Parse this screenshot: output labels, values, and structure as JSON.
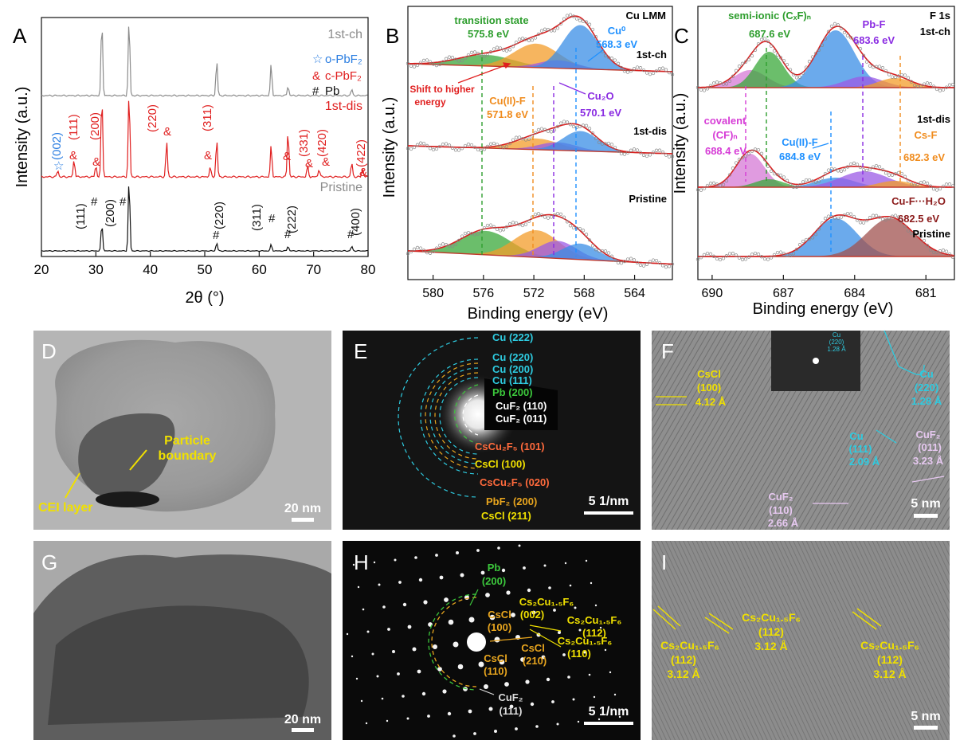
{
  "panelA": {
    "letter": "A",
    "ylabel": "Intensity (a.u.)",
    "xlabel": "2θ (°)",
    "xticks": [
      "20",
      "30",
      "40",
      "50",
      "60",
      "70",
      "80"
    ],
    "legend": [
      {
        "sym": "☆",
        "text": "o-PbF₂",
        "color": "#2a7de1"
      },
      {
        "sym": "&",
        "text": "c-PbF₂",
        "color": "#e01f1f"
      },
      {
        "sym": "#",
        "text": "Pb",
        "color": "#111111"
      }
    ],
    "curve_labels": [
      "1st-ch",
      "1st-dis",
      "Pristine"
    ],
    "dis_hkl": [
      "(002)",
      "(111)",
      "(200)",
      "(220)",
      "(311)",
      "(331)",
      "(420)",
      "(422)"
    ],
    "pristine_hkl": [
      "(111)",
      "(200)",
      "(220)",
      "(311)",
      "(222)",
      "(400)"
    ],
    "colors": {
      "ch": "#8c8c8c",
      "dis": "#e01f1f",
      "pristine": "#111111"
    }
  },
  "panelB": {
    "letter": "B",
    "title": "Cu LMM",
    "ylabel": "Intensity (a.u.)",
    "xlabel": "Binding energy (eV)",
    "xticks": [
      "580",
      "576",
      "572",
      "568",
      "564"
    ],
    "curve_labels": [
      "1st-ch",
      "1st-dis",
      "Pristine"
    ],
    "annotations": {
      "transition": "transition state",
      "transition_ev": "575.8 eV",
      "cu0": "Cu⁰",
      "cu0_ev": "568.3 eV",
      "shift1": "Shift to higher",
      "shift2": "energy",
      "cu2f": "Cu(II)-F",
      "cu2f_ev": "571.8 eV",
      "cu2o": "Cu₂O",
      "cu2o_ev": "570.1 eV"
    }
  },
  "panelC": {
    "letter": "C",
    "title": "F 1s",
    "ylabel": "Intensity (a.u.)",
    "xlabel": "Binding energy (eV)",
    "xticks": [
      "690",
      "687",
      "684",
      "681"
    ],
    "curve_labels": [
      "1st-ch",
      "1st-dis",
      "Pristine"
    ],
    "annotations": {
      "semi": "semi-ionic (CₓF)ₙ",
      "semi_ev": "687.6 eV",
      "pbf": "Pb-F",
      "pbf_ev": "683.6 eV",
      "cov": "covalent",
      "cov2": "(CF)ₙ",
      "cov_ev": "688.4 eV",
      "cu2f": "Cu(II)-F",
      "cu2f_ev": "684.8 eV",
      "csf": "Cs-F",
      "csf_ev": "682.3 eV",
      "water": "Cu-F···H₂O",
      "water_ev": "682.5 eV"
    }
  },
  "panelD": {
    "letter": "D",
    "particle1": "Particle",
    "particle2": "boundary",
    "cei": "CEI layer",
    "scale": "20 nm"
  },
  "panelE": {
    "letter": "E",
    "scale": "5 1/nm",
    "rings": [
      "Cu (222)",
      "Cu (220)",
      "Cu (200)",
      "Cu (111)",
      "Pb (200)",
      "CuF₂ (110)",
      "CuF₂ (011)",
      "CsCu₂F₅ (101)",
      "CsCl (100)",
      "CsCu₂F₅ (020)",
      "PbF₂ (200)",
      "CsCl (211)"
    ]
  },
  "panelF": {
    "letter": "F",
    "scale": "5 nm",
    "labels": [
      "CsCl",
      "(100)",
      "4.12 Å",
      "Cu",
      "(220)",
      "1.28 Å",
      "Cu",
      "(111)",
      "2.09 Å",
      "CuF₂",
      "(011)",
      "3.23 Å",
      "CuF₂",
      "(110)",
      "2.66 Å"
    ],
    "inset": [
      "Cu",
      "(220)",
      "1.28 Å"
    ]
  },
  "panelG": {
    "letter": "G",
    "scale": "20 nm"
  },
  "panelH": {
    "letter": "H",
    "scale": "5 1/nm",
    "labels": [
      "Pb",
      "(200)",
      "Cs₂Cu₁.₅F₆",
      "(002)",
      "CsCl",
      "(100)",
      "Cs₂Cu₁.₅F₆",
      "(112)",
      "Cs₂Cu₁.₅F₆",
      "(110)",
      "CsCl",
      "(210)",
      "CsCl",
      "(110)",
      "CuF₂",
      "(111)"
    ]
  },
  "panelI": {
    "letter": "I",
    "scale": "5 nm",
    "labels": [
      "Cs₂Cu₁.₅F₆",
      "(112)",
      "3.12 Å",
      "Cs₂Cu₁.₅F₆",
      "(112)",
      "3.12 Å",
      "Cs₂Cu₁.₅F₆",
      "(112)",
      "3.12 Å"
    ]
  }
}
